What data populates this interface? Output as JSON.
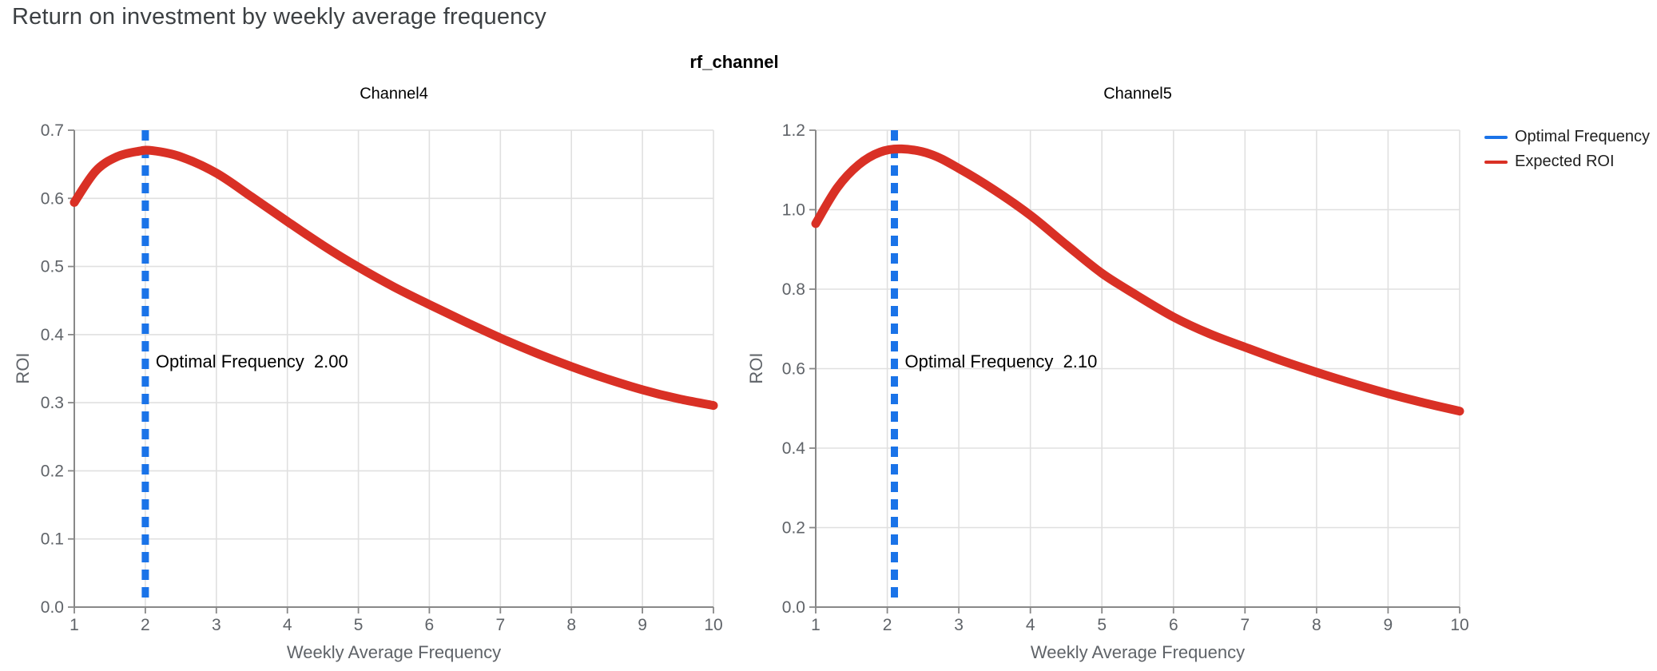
{
  "page": {
    "title": "Return on investment by weekly average frequency",
    "background": "#ffffff"
  },
  "facet_header": {
    "title": "rf_channel"
  },
  "legend": {
    "position": "top-right",
    "items": [
      {
        "label": "Optimal Frequency",
        "color": "#1a73e8"
      },
      {
        "label": "Expected ROI",
        "color": "#d93025"
      }
    ]
  },
  "chart_data": [
    {
      "type": "line",
      "title": "Channel4",
      "xlabel": "Weekly Average Frequency",
      "ylabel": "ROI",
      "xlim": [
        1,
        10
      ],
      "ylim": [
        0,
        0.7
      ],
      "xticks": [
        1,
        2,
        3,
        4,
        5,
        6,
        7,
        8,
        9,
        10
      ],
      "yticks": [
        0,
        0.1,
        0.2,
        0.3,
        0.4,
        0.5,
        0.6,
        0.7
      ],
      "grid": true,
      "annotation": "Optimal Frequency  2.00",
      "optimal_frequency": {
        "label": "Optimal Frequency",
        "value": "2.00",
        "x": 2.0,
        "color": "#1a73e8",
        "dashed": true
      },
      "series": [
        {
          "name": "Expected ROI",
          "color": "#d93025",
          "points": [
            [
              1,
              0.594
            ],
            [
              1.3,
              0.64
            ],
            [
              1.6,
              0.661
            ],
            [
              1.9,
              0.669
            ],
            [
              2.1,
              0.67
            ],
            [
              2.5,
              0.661
            ],
            [
              3,
              0.637
            ],
            [
              3.5,
              0.602
            ],
            [
              4,
              0.566
            ],
            [
              4.5,
              0.531
            ],
            [
              5,
              0.499
            ],
            [
              5.5,
              0.47
            ],
            [
              6,
              0.444
            ],
            [
              6.5,
              0.419
            ],
            [
              7,
              0.395
            ],
            [
              7.5,
              0.373
            ],
            [
              8,
              0.353
            ],
            [
              8.5,
              0.335
            ],
            [
              9,
              0.319
            ],
            [
              9.5,
              0.306
            ],
            [
              10,
              0.296
            ]
          ]
        }
      ]
    },
    {
      "type": "line",
      "title": "Channel5",
      "xlabel": "Weekly Average Frequency",
      "ylabel": "ROI",
      "xlim": [
        1,
        10
      ],
      "ylim": [
        0,
        1.2
      ],
      "xticks": [
        1,
        2,
        3,
        4,
        5,
        6,
        7,
        8,
        9,
        10
      ],
      "yticks": [
        0,
        0.2,
        0.4,
        0.6,
        0.8,
        1.0,
        1.2
      ],
      "grid": true,
      "annotation": "Optimal Frequency  2.10",
      "optimal_frequency": {
        "label": "Optimal Frequency",
        "value": "2.10",
        "x": 2.1,
        "color": "#1a73e8",
        "dashed": true
      },
      "series": [
        {
          "name": "Expected ROI",
          "color": "#d93025",
          "points": [
            [
              1,
              0.965
            ],
            [
              1.3,
              1.055
            ],
            [
              1.6,
              1.113
            ],
            [
              1.9,
              1.145
            ],
            [
              2.2,
              1.153
            ],
            [
              2.6,
              1.14
            ],
            [
              3,
              1.104
            ],
            [
              3.5,
              1.049
            ],
            [
              4,
              0.986
            ],
            [
              4.5,
              0.912
            ],
            [
              5,
              0.84
            ],
            [
              5.5,
              0.783
            ],
            [
              6,
              0.73
            ],
            [
              6.5,
              0.688
            ],
            [
              7,
              0.654
            ],
            [
              7.5,
              0.621
            ],
            [
              8,
              0.591
            ],
            [
              8.5,
              0.563
            ],
            [
              9,
              0.537
            ],
            [
              9.5,
              0.514
            ],
            [
              10,
              0.493
            ]
          ]
        }
      ]
    }
  ],
  "style": {
    "grid_color": "#e0e0e0",
    "axis_color": "#888888",
    "tick_label_color": "#5f6368"
  }
}
